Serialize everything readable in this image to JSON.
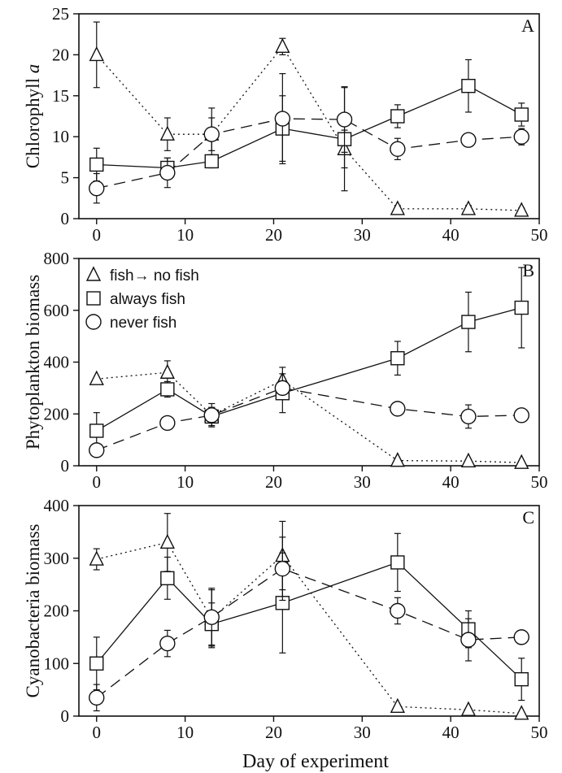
{
  "figure": {
    "xlabel": "Day of experiment"
  },
  "legend": [
    {
      "series": "fish_to_no_fish",
      "label": "fish→ no fish",
      "marker": "triangle"
    },
    {
      "series": "always_fish",
      "label": "always fish",
      "marker": "square"
    },
    {
      "series": "never_fish",
      "label": "never fish",
      "marker": "circle"
    }
  ],
  "chart_data": [
    {
      "type": "line",
      "panel": "A",
      "ylabel": "Chlorophyll a",
      "ylabel_parts": [
        "Chlorophyll ",
        "a"
      ],
      "xlim": [
        -2,
        50
      ],
      "ylim": [
        0,
        25
      ],
      "xticks": [
        0,
        10,
        20,
        30,
        40,
        50
      ],
      "yticks": [
        0,
        5,
        10,
        15,
        20,
        25
      ],
      "grid": false,
      "series": [
        {
          "id": "fish_to_no_fish",
          "marker": "triangle",
          "line": "dotted",
          "x": [
            0,
            8,
            13,
            21,
            28,
            34,
            42,
            48
          ],
          "y": [
            20,
            10.3,
            10.3,
            21,
            8.5,
            1.2,
            1.2,
            1.0
          ],
          "err": [
            4,
            2,
            3.2,
            1,
            2.3,
            0.4,
            0.4,
            0.3
          ]
        },
        {
          "id": "always_fish",
          "marker": "square",
          "line": "solid",
          "x": [
            0,
            8,
            13,
            21,
            28,
            34,
            42,
            48
          ],
          "y": [
            6.6,
            6.2,
            7.0,
            11,
            9.7,
            12.5,
            16.2,
            12.7
          ],
          "err": [
            2,
            1.2,
            0.8,
            4,
            6.3,
            1.4,
            3.2,
            1.4
          ]
        },
        {
          "id": "never_fish",
          "marker": "circle",
          "line": "dashed",
          "x": [
            0,
            8,
            13,
            21,
            28,
            34,
            42,
            48
          ],
          "y": [
            3.7,
            5.6,
            10.3,
            12.2,
            12.1,
            8.5,
            9.6,
            10
          ],
          "err": [
            1.8,
            1.8,
            2,
            5.5,
            4,
            1.3,
            0.5,
            1
          ]
        }
      ]
    },
    {
      "type": "line",
      "panel": "B",
      "ylabel": "Phytoplankton biomass",
      "xlim": [
        -2,
        50
      ],
      "ylim": [
        0,
        800
      ],
      "xticks": [
        0,
        10,
        20,
        30,
        40,
        50
      ],
      "yticks": [
        0,
        200,
        400,
        600,
        800
      ],
      "grid": false,
      "legend_position": "top-left",
      "series": [
        {
          "id": "fish_to_no_fish",
          "marker": "triangle",
          "line": "dotted",
          "x": [
            0,
            8,
            13,
            21,
            34,
            42,
            48
          ],
          "y": [
            335,
            360,
            195,
            330,
            20,
            18,
            12
          ],
          "err": [
            0,
            45,
            45,
            50,
            0,
            0,
            0
          ]
        },
        {
          "id": "always_fish",
          "marker": "square",
          "line": "solid",
          "x": [
            0,
            8,
            13,
            21,
            34,
            42,
            48
          ],
          "y": [
            135,
            295,
            190,
            280,
            415,
            555,
            610
          ],
          "err": [
            70,
            30,
            35,
            75,
            65,
            115,
            155
          ]
        },
        {
          "id": "never_fish",
          "marker": "circle",
          "line": "dashed",
          "x": [
            0,
            8,
            13,
            21,
            34,
            42,
            48
          ],
          "y": [
            60,
            165,
            195,
            300,
            220,
            190,
            195
          ],
          "err": [
            20,
            20,
            30,
            20,
            25,
            45,
            20
          ]
        }
      ]
    },
    {
      "type": "line",
      "panel": "C",
      "ylabel": "Cyanobacteria biomass",
      "xlim": [
        -2,
        50
      ],
      "ylim": [
        0,
        400
      ],
      "xticks": [
        0,
        10,
        20,
        30,
        40,
        50
      ],
      "yticks": [
        0,
        100,
        200,
        300,
        400
      ],
      "grid": false,
      "series": [
        {
          "id": "fish_to_no_fish",
          "marker": "triangle",
          "line": "dotted",
          "x": [
            0,
            8,
            13,
            21,
            34,
            42,
            48
          ],
          "y": [
            298,
            330,
            185,
            305,
            18,
            12,
            5
          ],
          "err": [
            20,
            55,
            55,
            65,
            0,
            0,
            0
          ]
        },
        {
          "id": "always_fish",
          "marker": "square",
          "line": "solid",
          "x": [
            0,
            8,
            13,
            21,
            34,
            42,
            48
          ],
          "y": [
            100,
            262,
            175,
            215,
            292,
            165,
            70
          ],
          "err": [
            50,
            40,
            40,
            95,
            55,
            35,
            40
          ]
        },
        {
          "id": "never_fish",
          "marker": "circle",
          "line": "dashed",
          "x": [
            0,
            8,
            13,
            21,
            34,
            42,
            48
          ],
          "y": [
            35,
            138,
            188,
            280,
            200,
            145,
            150
          ],
          "err": [
            25,
            25,
            55,
            60,
            25,
            40,
            12
          ]
        }
      ]
    }
  ]
}
